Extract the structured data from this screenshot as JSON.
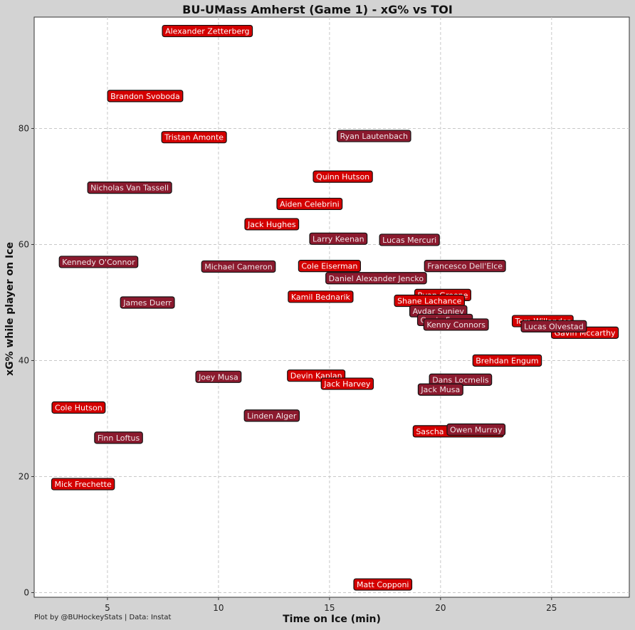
{
  "chart_data": {
    "type": "scatter",
    "title": "BU-UMass Amherst (Game 1) - xG% vs TOI",
    "xlabel": "Time on Ice (min)",
    "ylabel": "xG% while player on Ice",
    "xlim": [
      1.7,
      28.5
    ],
    "ylim": [
      -0.8,
      99.2
    ],
    "x_ticks": [
      5,
      10,
      15,
      20,
      25
    ],
    "y_ticks": [
      0,
      20,
      40,
      60,
      80
    ],
    "grid": true,
    "series": [
      {
        "color": "#d40000",
        "points": [
          {
            "label": "Alexander Zetterberg",
            "x": 9.5,
            "y": 96.8
          },
          {
            "label": "Brandon Svoboda",
            "x": 6.7,
            "y": 85.6
          },
          {
            "label": "Tristan Amonte",
            "x": 8.9,
            "y": 78.5
          },
          {
            "label": "Quinn Hutson",
            "x": 15.6,
            "y": 71.7
          },
          {
            "label": "Aiden Celebrini",
            "x": 14.1,
            "y": 67.0
          },
          {
            "label": "Jack Hughes",
            "x": 12.4,
            "y": 63.5
          },
          {
            "label": "Cole Eiserman",
            "x": 15.0,
            "y": 56.3
          },
          {
            "label": "Kamil Bednarik",
            "x": 14.6,
            "y": 51.0
          },
          {
            "label": "Ryan Greene",
            "x": 20.1,
            "y": 51.3
          },
          {
            "label": "Shane Lachance",
            "x": 19.5,
            "y": 50.3
          },
          {
            "label": "Tom Willander",
            "x": 24.6,
            "y": 46.8
          },
          {
            "label": "Gavin Mccarthy",
            "x": 26.5,
            "y": 44.8
          },
          {
            "label": "Brehdan Engum",
            "x": 23.0,
            "y": 40.0
          },
          {
            "label": "Devin Kaplan",
            "x": 14.4,
            "y": 37.4
          },
          {
            "label": "Jack Harvey",
            "x": 15.8,
            "y": 36.0
          },
          {
            "label": "Cole Hutson",
            "x": 3.7,
            "y": 31.9
          },
          {
            "label": "Sascha Boumedienne",
            "x": 20.8,
            "y": 27.8
          },
          {
            "label": "Mick Frechette",
            "x": 3.9,
            "y": 18.7
          },
          {
            "label": "Matt Copponi",
            "x": 17.4,
            "y": 1.4
          }
        ]
      },
      {
        "color": "#8b1a2e",
        "points": [
          {
            "label": "Ryan Lautenbach",
            "x": 17.0,
            "y": 78.7
          },
          {
            "label": "Nicholas Van Tassell",
            "x": 6.0,
            "y": 69.8
          },
          {
            "label": "Larry Keenan",
            "x": 15.4,
            "y": 61.0
          },
          {
            "label": "Lucas Mercuri",
            "x": 18.6,
            "y": 60.8
          },
          {
            "label": "Kennedy O'Connor",
            "x": 4.6,
            "y": 57.0
          },
          {
            "label": "Michael Cameron",
            "x": 10.9,
            "y": 56.2
          },
          {
            "label": "Francesco Dell'Elce",
            "x": 21.1,
            "y": 56.3
          },
          {
            "label": "Daniel Alexander Jencko",
            "x": 17.1,
            "y": 54.2
          },
          {
            "label": "James Duerr",
            "x": 6.8,
            "y": 50.0
          },
          {
            "label": "Aydar Suniev",
            "x": 19.9,
            "y": 48.5
          },
          {
            "label": "Gavin Fraser",
            "x": 20.2,
            "y": 47.0
          },
          {
            "label": "Kenny Connors",
            "x": 20.7,
            "y": 46.2
          },
          {
            "label": "Lucas Olvestad",
            "x": 25.1,
            "y": 45.9
          },
          {
            "label": "Joey Musa",
            "x": 10.0,
            "y": 37.2
          },
          {
            "label": "Dans Locmelis",
            "x": 20.9,
            "y": 36.7
          },
          {
            "label": "Jack Musa",
            "x": 20.0,
            "y": 35.0
          },
          {
            "label": "Linden Alger",
            "x": 12.4,
            "y": 30.5
          },
          {
            "label": "Finn Loftus",
            "x": 5.5,
            "y": 26.7
          },
          {
            "label": "Owen Murray",
            "x": 21.6,
            "y": 28.1
          }
        ]
      }
    ]
  },
  "footer": "Plot by @BUHockeyStats | Data: Instat"
}
